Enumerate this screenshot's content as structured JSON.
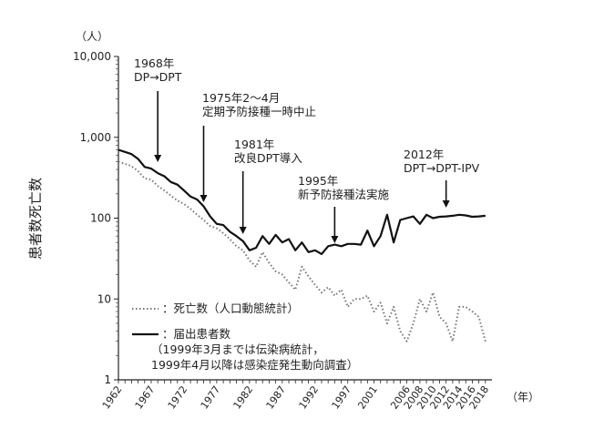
{
  "chart_data": {
    "type": "line",
    "yscale": "log",
    "ylim": [
      1,
      10000
    ],
    "xlim": [
      1962,
      2019
    ],
    "ylabel": "患者数死亡数",
    "y_unit": "（人）",
    "x_unit": "（年）",
    "y_ticks": [
      {
        "v": 10000,
        "label": "10,000"
      },
      {
        "v": 1000,
        "label": "1,000"
      },
      {
        "v": 100,
        "label": "100"
      },
      {
        "v": 10,
        "label": "10"
      },
      {
        "v": 1,
        "label": "1"
      }
    ],
    "x_ticks": [
      {
        "v": 1962,
        "label": "1962"
      },
      {
        "v": 1967,
        "label": "1967"
      },
      {
        "v": 1972,
        "label": "1972"
      },
      {
        "v": 1977,
        "label": "1977"
      },
      {
        "v": 1982,
        "label": "1982"
      },
      {
        "v": 1987,
        "label": "1987"
      },
      {
        "v": 1992,
        "label": "1992"
      },
      {
        "v": 1997,
        "label": "1997"
      },
      {
        "v": 2001,
        "label": "2001"
      },
      {
        "v": 2006,
        "label": "2006"
      },
      {
        "v": 2008,
        "label": "2008"
      },
      {
        "v": 2010,
        "label": "2010"
      },
      {
        "v": 2012,
        "label": "2012"
      },
      {
        "v": 2014,
        "label": "2014"
      },
      {
        "v": 2016,
        "label": "2016"
      },
      {
        "v": 2018,
        "label": "2018"
      }
    ],
    "series": [
      {
        "name": "届出患者数",
        "legend": "：届出患者数",
        "legend_note": [
          "（1999年3月までは伝染病統計，",
          "1999年4月以降は感染症発生動向調査）"
        ],
        "style": "solid",
        "color": "#111111",
        "points": [
          [
            1962,
            700
          ],
          [
            1963,
            660
          ],
          [
            1964,
            620
          ],
          [
            1965,
            540
          ],
          [
            1966,
            430
          ],
          [
            1967,
            410
          ],
          [
            1968,
            360
          ],
          [
            1969,
            330
          ],
          [
            1970,
            280
          ],
          [
            1971,
            260
          ],
          [
            1972,
            220
          ],
          [
            1973,
            185
          ],
          [
            1974,
            170
          ],
          [
            1975,
            140
          ],
          [
            1976,
            105
          ],
          [
            1977,
            85
          ],
          [
            1978,
            82
          ],
          [
            1979,
            68
          ],
          [
            1980,
            60
          ],
          [
            1981,
            52
          ],
          [
            1982,
            40
          ],
          [
            1983,
            43
          ],
          [
            1984,
            60
          ],
          [
            1985,
            48
          ],
          [
            1986,
            62
          ],
          [
            1987,
            50
          ],
          [
            1988,
            55
          ],
          [
            1989,
            40
          ],
          [
            1990,
            50
          ],
          [
            1991,
            38
          ],
          [
            1992,
            40
          ],
          [
            1993,
            36
          ],
          [
            1994,
            45
          ],
          [
            1995,
            47
          ],
          [
            1996,
            45
          ],
          [
            1997,
            48
          ],
          [
            1998,
            48
          ],
          [
            1999,
            47
          ],
          [
            2000,
            70
          ],
          [
            2001,
            45
          ],
          [
            2002,
            60
          ],
          [
            2003,
            110
          ],
          [
            2004,
            50
          ],
          [
            2005,
            95
          ],
          [
            2006,
            100
          ],
          [
            2007,
            105
          ],
          [
            2008,
            85
          ],
          [
            2009,
            110
          ],
          [
            2010,
            100
          ],
          [
            2011,
            104
          ],
          [
            2012,
            105
          ],
          [
            2013,
            107
          ],
          [
            2014,
            110
          ],
          [
            2015,
            108
          ],
          [
            2016,
            104
          ],
          [
            2017,
            105
          ],
          [
            2018,
            107
          ]
        ]
      },
      {
        "name": "死亡数",
        "legend": "：死亡数（人口動態統計）",
        "style": "dotted",
        "color": "#777777",
        "points": [
          [
            1962,
            500
          ],
          [
            1963,
            470
          ],
          [
            1964,
            440
          ],
          [
            1965,
            380
          ],
          [
            1966,
            310
          ],
          [
            1967,
            300
          ],
          [
            1968,
            250
          ],
          [
            1969,
            220
          ],
          [
            1970,
            190
          ],
          [
            1971,
            165
          ],
          [
            1972,
            150
          ],
          [
            1973,
            130
          ],
          [
            1974,
            110
          ],
          [
            1975,
            95
          ],
          [
            1976,
            80
          ],
          [
            1977,
            75
          ],
          [
            1978,
            65
          ],
          [
            1979,
            55
          ],
          [
            1980,
            45
          ],
          [
            1981,
            40
          ],
          [
            1982,
            30
          ],
          [
            1983,
            25
          ],
          [
            1984,
            38
          ],
          [
            1985,
            28
          ],
          [
            1986,
            22
          ],
          [
            1987,
            20
          ],
          [
            1988,
            16
          ],
          [
            1989,
            13
          ],
          [
            1990,
            25
          ],
          [
            1991,
            19
          ],
          [
            1992,
            15
          ],
          [
            1993,
            12
          ],
          [
            1994,
            14
          ],
          [
            1995,
            11
          ],
          [
            1996,
            13
          ],
          [
            1997,
            8
          ],
          [
            1998,
            10
          ],
          [
            1999,
            10
          ],
          [
            2000,
            11
          ],
          [
            2001,
            7
          ],
          [
            2002,
            9
          ],
          [
            2003,
            5
          ],
          [
            2004,
            8
          ],
          [
            2005,
            4
          ],
          [
            2006,
            3
          ],
          [
            2007,
            5
          ],
          [
            2008,
            10
          ],
          [
            2009,
            7
          ],
          [
            2010,
            12
          ],
          [
            2011,
            6
          ],
          [
            2012,
            5
          ],
          [
            2013,
            3
          ],
          [
            2014,
            8
          ],
          [
            2015,
            8
          ],
          [
            2016,
            7
          ],
          [
            2017,
            6
          ],
          [
            2018,
            3
          ]
        ]
      }
    ],
    "annotations": [
      {
        "year": 1968,
        "lines": [
          "1968年",
          "DP→DPT"
        ]
      },
      {
        "year": 1975,
        "lines": [
          "1975年2～4月",
          "定期予防接種一時中止"
        ]
      },
      {
        "year": 1981,
        "lines": [
          "1981年",
          "改良DPT導入"
        ]
      },
      {
        "year": 1995,
        "lines": [
          "1995年",
          "新予防接種法実施"
        ]
      },
      {
        "year": 2012,
        "lines": [
          "2012年",
          "DPT→DPT-IPV"
        ]
      }
    ]
  }
}
